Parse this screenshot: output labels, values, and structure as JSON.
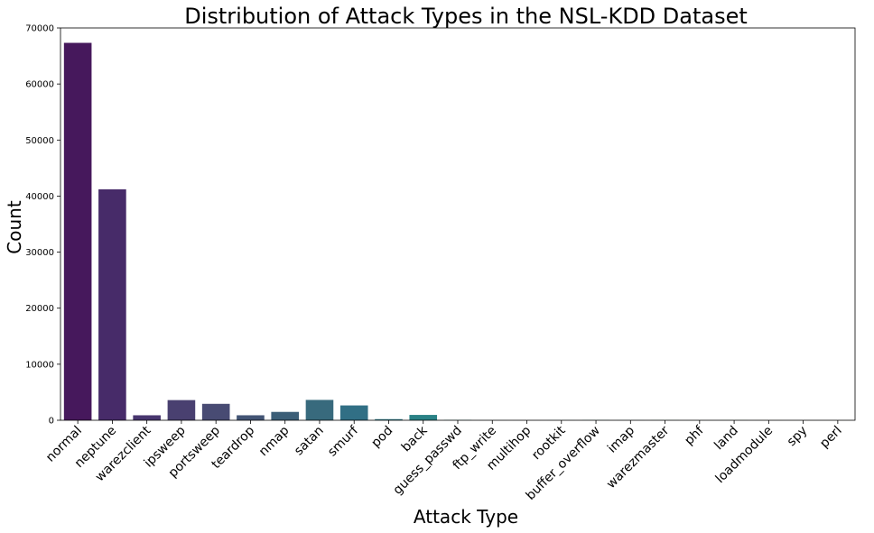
{
  "chart_data": {
    "type": "bar",
    "title": "Distribution of Attack Types in the NSL-KDD Dataset",
    "xlabel": "Attack Type",
    "ylabel": "Count",
    "ylim": [
      0,
      70000
    ],
    "yticks": [
      0,
      10000,
      20000,
      30000,
      40000,
      50000,
      60000,
      70000
    ],
    "ytick_labels": [
      "0",
      "10000",
      "20000",
      "30000",
      "40000",
      "50000",
      "60000",
      "70000"
    ],
    "grid": false,
    "legend": "none",
    "categories": [
      "normal",
      "neptune",
      "warezclient",
      "ipsweep",
      "portsweep",
      "teardrop",
      "nmap",
      "satan",
      "smurf",
      "pod",
      "back",
      "guess_passwd",
      "ftp_write",
      "multihop",
      "rootkit",
      "buffer_overflow",
      "imap",
      "warezmaster",
      "phf",
      "land",
      "loadmodule",
      "spy",
      "perl"
    ],
    "values": [
      67343,
      41214,
      890,
      3599,
      2931,
      892,
      1493,
      3633,
      2646,
      201,
      956,
      53,
      8,
      7,
      10,
      30,
      11,
      20,
      4,
      18,
      9,
      2,
      3
    ],
    "colors": [
      "#46185c",
      "#472b69",
      "#48366f",
      "#494070",
      "#484b73",
      "#435575",
      "#3b5e77",
      "#386a7d",
      "#316f85",
      "#2d7a88",
      "#2a8286",
      "#278a85",
      "#26918a",
      "#239a88",
      "#22a387",
      "#27ab83",
      "#31b47d",
      "#44bc72",
      "#5ec864",
      "#7ad151",
      "#98d63c",
      "#bfde2c",
      "#dfe32b"
    ]
  }
}
